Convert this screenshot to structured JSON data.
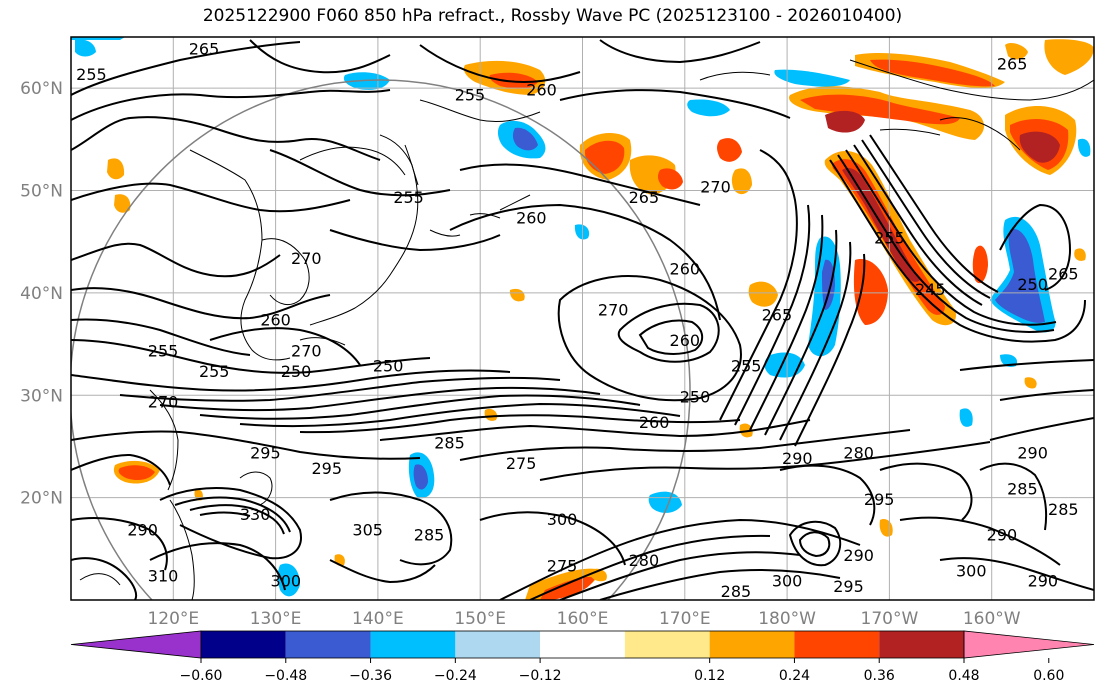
{
  "title": "2025122900 F060 850 hPa refract., Rossby Wave PC (2025123100 - 2026010400)",
  "map": {
    "lat_labels": [
      "60°N",
      "50°N",
      "40°N",
      "30°N",
      "20°N"
    ],
    "lon_labels": [
      "120°E",
      "130°E",
      "140°E",
      "150°E",
      "160°E",
      "170°E",
      "180°W",
      "170°W",
      "160°W"
    ],
    "extent": {
      "lon_min": 110,
      "lon_max": 210,
      "lat_min": 10,
      "lat_max": 65
    }
  },
  "contour_labels": [
    {
      "text": "265",
      "lon": 123,
      "lat": 63.5
    },
    {
      "text": "255",
      "lon": 112,
      "lat": 61
    },
    {
      "text": "255",
      "lon": 149,
      "lat": 59
    },
    {
      "text": "260",
      "lon": 156,
      "lat": 59.5
    },
    {
      "text": "265",
      "lon": 202,
      "lat": 62
    },
    {
      "text": "255",
      "lon": 143,
      "lat": 49
    },
    {
      "text": "265",
      "lon": 166,
      "lat": 49
    },
    {
      "text": "270",
      "lon": 173,
      "lat": 50
    },
    {
      "text": "260",
      "lon": 155,
      "lat": 47
    },
    {
      "text": "270",
      "lon": 133,
      "lat": 43
    },
    {
      "text": "260",
      "lon": 170,
      "lat": 42
    },
    {
      "text": "270",
      "lon": 163,
      "lat": 38
    },
    {
      "text": "260",
      "lon": 170,
      "lat": 35
    },
    {
      "text": "265",
      "lon": 179,
      "lat": 37.5
    },
    {
      "text": "255",
      "lon": 176,
      "lat": 32.5
    },
    {
      "text": "250",
      "lon": 171,
      "lat": 29.5
    },
    {
      "text": "260",
      "lon": 167,
      "lat": 27
    },
    {
      "text": "260",
      "lon": 130,
      "lat": 37
    },
    {
      "text": "255",
      "lon": 119,
      "lat": 34
    },
    {
      "text": "255",
      "lon": 124,
      "lat": 32
    },
    {
      "text": "250",
      "lon": 132,
      "lat": 32
    },
    {
      "text": "250",
      "lon": 141,
      "lat": 32.5
    },
    {
      "text": "270",
      "lon": 119,
      "lat": 29
    },
    {
      "text": "295",
      "lon": 129,
      "lat": 24
    },
    {
      "text": "295",
      "lon": 135,
      "lat": 22.5
    },
    {
      "text": "280",
      "lon": 187,
      "lat": 24
    },
    {
      "text": "290",
      "lon": 181,
      "lat": 23.5
    },
    {
      "text": "295",
      "lon": 189,
      "lat": 19.5
    },
    {
      "text": "290",
      "lon": 204,
      "lat": 24
    },
    {
      "text": "285",
      "lon": 203,
      "lat": 20.5
    },
    {
      "text": "285",
      "lon": 207,
      "lat": 18.5
    },
    {
      "text": "290",
      "lon": 201,
      "lat": 16
    },
    {
      "text": "300",
      "lon": 198,
      "lat": 12.5
    },
    {
      "text": "290",
      "lon": 205,
      "lat": 11.5
    },
    {
      "text": "305",
      "lon": 139,
      "lat": 16.5
    },
    {
      "text": "285",
      "lon": 145,
      "lat": 16
    },
    {
      "text": "300",
      "lon": 158,
      "lat": 17.5
    },
    {
      "text": "275",
      "lon": 154,
      "lat": 23
    },
    {
      "text": "285",
      "lon": 147,
      "lat": 25
    },
    {
      "text": "290",
      "lon": 117,
      "lat": 16.5
    },
    {
      "text": "300",
      "lon": 131,
      "lat": 11.5
    },
    {
      "text": "310",
      "lon": 119,
      "lat": 12
    },
    {
      "text": "330",
      "lon": 128,
      "lat": 18
    },
    {
      "text": "275",
      "lon": 158,
      "lat": 13
    },
    {
      "text": "280",
      "lon": 166,
      "lat": 13.5
    },
    {
      "text": "300",
      "lon": 180,
      "lat": 11.5
    },
    {
      "text": "295",
      "lon": 186,
      "lat": 11
    },
    {
      "text": "290",
      "lon": 187,
      "lat": 14
    },
    {
      "text": "285",
      "lon": 175,
      "lat": 10.5
    },
    {
      "text": "245",
      "lon": 194,
      "lat": 40
    },
    {
      "text": "255",
      "lon": 190,
      "lat": 45
    },
    {
      "text": "250",
      "lon": 204,
      "lat": 40.5
    },
    {
      "text": "265",
      "lon": 207,
      "lat": 41.5
    },
    {
      "text": "270",
      "lon": 133,
      "lat": 34
    }
  ],
  "colorbar": {
    "ticks": [
      "−0.60",
      "−0.48",
      "−0.36",
      "−0.24",
      "−0.12",
      "0.12",
      "0.24",
      "0.36",
      "0.48",
      "0.60"
    ],
    "levels": [
      -0.72,
      -0.6,
      -0.48,
      -0.36,
      -0.24,
      -0.12,
      0.12,
      0.24,
      0.36,
      0.48,
      0.6,
      0.72
    ],
    "colors": [
      "#9932cc",
      "#00008b",
      "#3a5bd2",
      "#00bfff",
      "#add8f0",
      "#ffffff",
      "#ffe98a",
      "#ffa500",
      "#ff4500",
      "#b22222",
      "#ff85b0"
    ]
  }
}
